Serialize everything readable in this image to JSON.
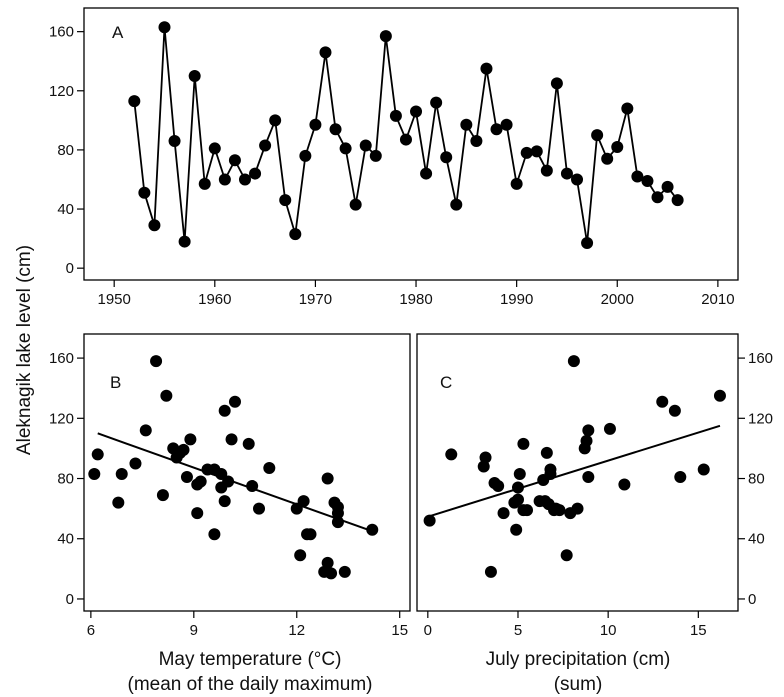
{
  "figure": {
    "ylabel": "Aleknagik lake level (cm)"
  },
  "chart_data": [
    {
      "panel": "A",
      "type": "line",
      "markers": true,
      "xlim": [
        1947,
        2012
      ],
      "ylim": [
        -8,
        176
      ],
      "xticks": [
        1950,
        1960,
        1970,
        1980,
        1990,
        2000,
        2010
      ],
      "yticks": [
        0,
        40,
        80,
        120,
        160
      ],
      "x": [
        1952,
        1953,
        1954,
        1955,
        1956,
        1957,
        1958,
        1959,
        1960,
        1961,
        1962,
        1963,
        1964,
        1965,
        1966,
        1967,
        1968,
        1969,
        1970,
        1971,
        1972,
        1973,
        1974,
        1975,
        1976,
        1977,
        1978,
        1979,
        1980,
        1981,
        1982,
        1983,
        1984,
        1985,
        1986,
        1987,
        1988,
        1989,
        1990,
        1991,
        1992,
        1993,
        1994,
        1995,
        1996,
        1997,
        1998,
        1999,
        2000,
        2001,
        2002,
        2003,
        2004,
        2005,
        2006
      ],
      "y": [
        113,
        51,
        29,
        163,
        86,
        18,
        130,
        57,
        81,
        60,
        73,
        60,
        64,
        83,
        100,
        46,
        23,
        76,
        97,
        146,
        94,
        81,
        43,
        83,
        76,
        157,
        103,
        87,
        106,
        64,
        112,
        75,
        43,
        97,
        86,
        135,
        94,
        97,
        57,
        78,
        79,
        66,
        125,
        64,
        60,
        17,
        90,
        74,
        82,
        108,
        62,
        59,
        48,
        55,
        46
      ]
    },
    {
      "panel": "B",
      "type": "scatter",
      "xlabel": "May temperature (°C)",
      "xlabel2": "(mean of the daily maximum)",
      "xlim": [
        5.8,
        15.3
      ],
      "ylim": [
        -8,
        176
      ],
      "xticks": [
        6,
        9,
        12,
        15
      ],
      "yticks": [
        0,
        40,
        80,
        120,
        160
      ],
      "x": [
        6.1,
        6.2,
        6.9,
        6.8,
        7.3,
        7.6,
        7.9,
        8.1,
        8.2,
        8.4,
        8.6,
        8.5,
        8.8,
        8.7,
        8.9,
        9.1,
        9.1,
        9.2,
        9.4,
        9.6,
        9.6,
        9.8,
        9.8,
        9.9,
        10.0,
        9.9,
        10.1,
        10.2,
        10.6,
        10.7,
        10.9,
        11.2,
        12.0,
        12.1,
        12.2,
        12.3,
        12.4,
        12.8,
        12.9,
        12.9,
        13.0,
        13.1,
        13.2,
        13.2,
        13.2,
        13.4,
        14.2
      ],
      "y": [
        83,
        96,
        83,
        64,
        90,
        112,
        158,
        69,
        135,
        100,
        97,
        94,
        81,
        99,
        106,
        76,
        57,
        78,
        86,
        86,
        43,
        83,
        74,
        125,
        78,
        65,
        106,
        131,
        103,
        75,
        60,
        87,
        60,
        29,
        65,
        43,
        43,
        18,
        24,
        80,
        17,
        64,
        61,
        57,
        51,
        18,
        46
      ],
      "trend": {
        "x1": 6.2,
        "y1": 110,
        "x2": 14.2,
        "y2": 45
      }
    },
    {
      "panel": "C",
      "type": "scatter",
      "xlabel": "July precipitation (cm)",
      "xlabel2": "(sum)",
      "xlim": [
        -0.6,
        17.2
      ],
      "ylim": [
        -8,
        176
      ],
      "xticks": [
        0,
        5,
        10,
        15
      ],
      "yticks": [
        0,
        40,
        80,
        120,
        160
      ],
      "x": [
        0.1,
        1.3,
        3.1,
        3.2,
        3.5,
        3.7,
        3.9,
        4.2,
        4.8,
        4.9,
        5.0,
        5.0,
        5.1,
        5.3,
        5.3,
        5.5,
        6.2,
        6.4,
        6.5,
        6.7,
        6.6,
        6.8,
        6.8,
        7.0,
        7.1,
        7.3,
        7.7,
        7.9,
        8.1,
        8.3,
        8.7,
        8.9,
        8.8,
        8.9,
        10.1,
        10.9,
        13.0,
        13.7,
        14.0,
        15.3,
        16.2
      ],
      "y": [
        52,
        96,
        88,
        94,
        18,
        77,
        75,
        57,
        64,
        46,
        66,
        74,
        83,
        59,
        103,
        59,
        65,
        79,
        65,
        63,
        97,
        83,
        86,
        59,
        60,
        59,
        29,
        57,
        158,
        60,
        100,
        112,
        105,
        81,
        113,
        76,
        131,
        125,
        81,
        86,
        135
      ],
      "trend": {
        "x1": 0.1,
        "y1": 55,
        "x2": 16.2,
        "y2": 115
      }
    }
  ]
}
